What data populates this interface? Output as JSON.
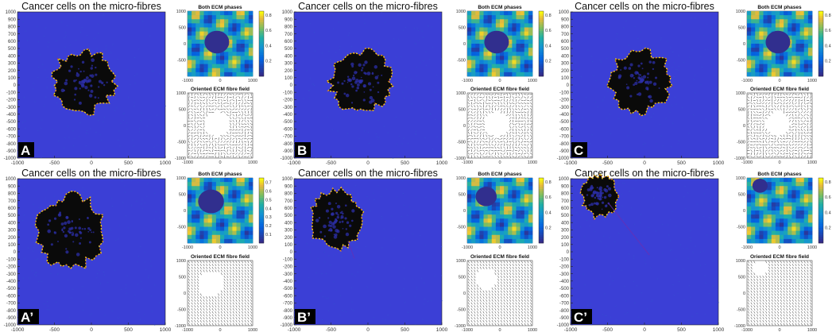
{
  "chart_data": [
    {
      "id": "A",
      "type": "heatmap",
      "title": "Cancer cells on the micro-fibres",
      "label": "A",
      "xlim": [
        -1000,
        1000
      ],
      "ylim": [
        -1000,
        1000
      ],
      "xticks": [
        -1000,
        -500,
        0,
        500,
        1000
      ],
      "yticks": [
        -1000,
        -900,
        -800,
        -700,
        -600,
        -500,
        -400,
        -300,
        -200,
        -100,
        0,
        100,
        200,
        300,
        400,
        500,
        600,
        700,
        800,
        900,
        1000
      ],
      "cluster": {
        "cx": -100,
        "cy": 50,
        "r": 420
      },
      "inset_phase": {
        "title": "Both ECM phases",
        "xticks": [
          -1000,
          0,
          1000
        ],
        "yticks": [
          -500,
          0,
          500,
          1000
        ],
        "colorbar_ticks": [
          0.2,
          0.4,
          0.6,
          0.8
        ],
        "colorbar_range": [
          0.0,
          0.85
        ]
      },
      "inset_field": {
        "title": "Oriented ECM fibre field",
        "xticks": [
          -1000,
          0,
          1000
        ],
        "yticks": [
          -1000,
          -500,
          0,
          500,
          1000
        ],
        "pattern": "random"
      }
    },
    {
      "id": "B",
      "type": "heatmap",
      "title": "Cancer cells on the micro-fibres",
      "label": "B",
      "xlim": [
        -1000,
        1000
      ],
      "ylim": [
        -1000,
        1000
      ],
      "xticks": [
        -1000,
        -500,
        0,
        500,
        1000
      ],
      "yticks": [
        -1000,
        -900,
        -800,
        -700,
        -600,
        -500,
        -400,
        -300,
        -200,
        -100,
        0,
        100,
        200,
        300,
        400,
        500,
        600,
        700,
        800,
        900,
        1000
      ],
      "cluster": {
        "cx": -100,
        "cy": 50,
        "r": 420
      },
      "inset_phase": {
        "title": "Both ECM phases",
        "xticks": [
          -1000,
          0,
          1000
        ],
        "yticks": [
          -500,
          0,
          500,
          1000
        ],
        "colorbar_ticks": [
          0.2,
          0.4,
          0.6,
          0.8
        ],
        "colorbar_range": [
          0.0,
          0.85
        ]
      },
      "inset_field": {
        "title": "Oriented ECM fibre field",
        "xticks": [
          -1000,
          0,
          1000
        ],
        "yticks": [
          -1000,
          -500,
          0,
          500,
          1000
        ],
        "pattern": "random"
      }
    },
    {
      "id": "C",
      "type": "heatmap",
      "title": "Cancer cells on the micro-fibres",
      "label": "C",
      "xlim": [
        -1000,
        1000
      ],
      "ylim": [
        -1000,
        1000
      ],
      "xticks": [
        -1000,
        -500,
        0,
        500,
        1000
      ],
      "yticks": [
        -1000,
        -900,
        -800,
        -700,
        -600,
        -500,
        -400,
        -300,
        -200,
        -100,
        0,
        100,
        200,
        300,
        400,
        500,
        600,
        700,
        800,
        900,
        1000
      ],
      "cluster": {
        "cx": -50,
        "cy": 50,
        "r": 420
      },
      "inset_phase": {
        "title": "Both ECM phases",
        "xticks": [
          -1000,
          0,
          1000
        ],
        "yticks": [
          -500,
          0,
          500,
          1000
        ],
        "colorbar_ticks": [
          0.2,
          0.4,
          0.6,
          0.8
        ],
        "colorbar_range": [
          0.0,
          0.85
        ]
      },
      "inset_field": {
        "title": "Oriented ECM fibre field",
        "xticks": [
          -1000,
          0,
          1000
        ],
        "yticks": [
          -1000,
          -500,
          0,
          500,
          1000
        ],
        "pattern": "random"
      }
    },
    {
      "id": "A'",
      "type": "heatmap",
      "title": "Cancer cells on the micro-fibres",
      "label": "A’",
      "xlim": [
        -1000,
        1000
      ],
      "ylim": [
        -1000,
        1000
      ],
      "xticks": [
        -1000,
        -500,
        0,
        500,
        1000
      ],
      "yticks": [
        -1000,
        -900,
        -800,
        -700,
        -600,
        -500,
        -400,
        -300,
        -200,
        -100,
        0,
        100,
        200,
        300,
        400,
        500,
        600,
        700,
        800,
        900,
        1000
      ],
      "cluster": {
        "cx": -280,
        "cy": 280,
        "r": 440
      },
      "inset_phase": {
        "title": "Both ECM phases",
        "xticks": [
          -1000,
          0,
          1000
        ],
        "yticks": [
          -500,
          0,
          500,
          1000
        ],
        "colorbar_ticks": [
          0.1,
          0.2,
          0.3,
          0.4,
          0.5,
          0.6,
          0.7
        ],
        "colorbar_range": [
          0.0,
          0.75
        ]
      },
      "inset_field": {
        "title": "Oriented ECM fibre field",
        "xticks": [
          -1000,
          0,
          1000
        ],
        "yticks": [
          -1000,
          -500,
          0,
          500,
          1000
        ],
        "pattern": "aligned"
      }
    },
    {
      "id": "B'",
      "type": "heatmap",
      "title": "Cancer cells on the micro-fibres",
      "label": "B’",
      "xlim": [
        -1000,
        1000
      ],
      "ylim": [
        -1000,
        1000
      ],
      "xticks": [
        -1000,
        -500,
        0,
        500,
        1000
      ],
      "yticks": [
        -1000,
        -900,
        -800,
        -700,
        -600,
        -500,
        -400,
        -300,
        -200,
        -100,
        0,
        100,
        200,
        300,
        400,
        500,
        600,
        700,
        800,
        900,
        1000
      ],
      "cluster": {
        "cx": -420,
        "cy": 430,
        "r": 360
      },
      "inset_phase": {
        "title": "Both ECM phases",
        "xticks": [
          -1000,
          0,
          1000
        ],
        "yticks": [
          -500,
          0,
          500,
          1000
        ],
        "colorbar_ticks": [
          0.2,
          0.4,
          0.6,
          0.8
        ],
        "colorbar_range": [
          0.0,
          0.85
        ]
      },
      "inset_field": {
        "title": "Oriented ECM fibre field",
        "xticks": [
          -1000,
          0,
          1000
        ],
        "yticks": [
          -1000,
          -500,
          0,
          500,
          1000
        ],
        "pattern": "aligned"
      }
    },
    {
      "id": "C'",
      "type": "heatmap",
      "title": "Cancer cells on the micro-fibres",
      "label": "C’",
      "xlim": [
        -1000,
        1000
      ],
      "ylim": [
        -1000,
        1000
      ],
      "xticks": [
        -1000,
        -500,
        0,
        500,
        1000
      ],
      "yticks": [
        -1000,
        -900,
        -800,
        -700,
        -600,
        -500,
        -400,
        -300,
        -200,
        -100,
        0,
        100,
        200,
        300,
        400,
        500,
        600,
        700,
        800,
        900,
        1000
      ],
      "cluster": {
        "cx": -600,
        "cy": 760,
        "r": 260
      },
      "inset_phase": {
        "title": "Both ECM phases",
        "xticks": [
          -1000,
          0,
          1000
        ],
        "yticks": [
          -500,
          0,
          500,
          1000
        ],
        "colorbar_ticks": [
          0.2,
          0.4,
          0.6,
          0.8
        ],
        "colorbar_range": [
          0.0,
          0.85
        ]
      },
      "inset_field": {
        "title": "Oriented ECM fibre field",
        "xticks": [
          -1000,
          0,
          1000
        ],
        "yticks": [
          -1000,
          -500,
          0,
          500,
          1000
        ],
        "pattern": "aligned"
      }
    }
  ],
  "colors": {
    "field_blue": "#3b3fd6",
    "field_blue_alt": "#3553d0",
    "cell_black": "#0a0a0a",
    "cell_edge_red": "#e0301e",
    "cell_edge_yellow": "#f2d11c",
    "parula_low": "#352a87",
    "parula_mid": "#1fb0a6",
    "parula_high": "#f9fb0e",
    "label_bg": "#000000",
    "label_fg": "#ffffff"
  }
}
